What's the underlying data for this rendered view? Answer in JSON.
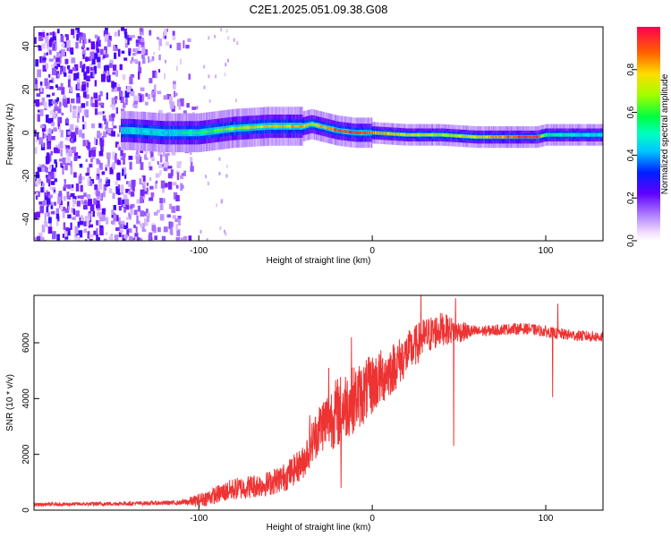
{
  "title": "C2E1.2025.051.09.38.G08",
  "chart_data": [
    {
      "type": "heatmap",
      "name": "spectrogram",
      "xlabel": "Height of straight line (km)",
      "ylabel": "Frequency (Hz)",
      "xlim": [
        -195,
        133
      ],
      "ylim": [
        -50,
        49
      ],
      "xticks": [
        -100,
        0,
        100
      ],
      "xtick_labels": [
        "-100",
        "0",
        "100"
      ],
      "yticks": [
        -40,
        -20,
        0,
        20,
        40
      ],
      "ytick_labels": [
        "-40",
        "-20",
        "0",
        "20",
        "40"
      ],
      "ridge": {
        "x": [
          -140,
          -120,
          -100,
          -80,
          -60,
          -40,
          -35,
          -20,
          -10,
          0,
          20,
          40,
          60,
          80,
          95,
          100,
          110,
          133
        ],
        "freq": [
          1,
          0,
          0,
          2,
          3,
          3,
          4,
          1,
          0,
          0,
          -1,
          -1,
          -2,
          -2,
          -2,
          -1,
          -1,
          -1
        ],
        "amplitude": [
          0.45,
          0.45,
          0.55,
          0.7,
          0.75,
          0.8,
          0.7,
          0.9,
          0.95,
          0.85,
          0.75,
          0.7,
          0.75,
          0.9,
          0.95,
          0.55,
          0.5,
          0.45
        ]
      },
      "colorbar": {
        "label": "Normalized spectral amplitude",
        "ticks": [
          0.0,
          0.2,
          0.4,
          0.6,
          0.8
        ],
        "tick_labels": [
          "0.0",
          "0.2",
          "0.4",
          "0.6",
          "0.8"
        ],
        "range": [
          0,
          1
        ]
      }
    },
    {
      "type": "line",
      "name": "snr",
      "xlabel": "Height of straight line (km)",
      "ylabel": "SNR (10 * v/v)",
      "xlim": [
        -195,
        133
      ],
      "ylim": [
        0,
        7700
      ],
      "xticks": [
        -100,
        0,
        100
      ],
      "xtick_labels": [
        "-100",
        "0",
        "100"
      ],
      "yticks": [
        0,
        2000,
        4000,
        6000
      ],
      "ytick_labels": [
        "0",
        "2000",
        "4000",
        "6000"
      ],
      "color": "#ee3333",
      "trend": {
        "x": [
          -195,
          -150,
          -110,
          -100,
          -90,
          -80,
          -70,
          -60,
          -50,
          -40,
          -35,
          -30,
          -25,
          -20,
          -15,
          -10,
          -5,
          0,
          10,
          20,
          30,
          40,
          50,
          60,
          70,
          80,
          90,
          100,
          110,
          120,
          133
        ],
        "snr": [
          200,
          230,
          270,
          350,
          550,
          750,
          850,
          950,
          1200,
          1700,
          2400,
          3000,
          3300,
          3500,
          3800,
          4000,
          4200,
          4500,
          5000,
          5600,
          6200,
          6500,
          6400,
          6400,
          6450,
          6500,
          6500,
          6400,
          6300,
          6250,
          6200
        ]
      },
      "noise_amplitude": {
        "x": [
          -195,
          -110,
          -100,
          -80,
          -60,
          -40,
          -20,
          0,
          20,
          40,
          60,
          100,
          133
        ],
        "amp": [
          60,
          80,
          250,
          400,
          450,
          600,
          1300,
          1100,
          800,
          600,
          200,
          200,
          200
        ]
      },
      "spikes": [
        {
          "x": -36,
          "snr": 3400
        },
        {
          "x": -25,
          "snr": 5100
        },
        {
          "x": -18,
          "snr": 800
        },
        {
          "x": -12,
          "snr": 6200
        },
        {
          "x": 28,
          "snr": 7700
        },
        {
          "x": 47,
          "snr": 2300
        },
        {
          "x": 48,
          "snr": 7600
        },
        {
          "x": 104,
          "snr": 4050
        },
        {
          "x": 107,
          "snr": 7400
        }
      ]
    }
  ]
}
